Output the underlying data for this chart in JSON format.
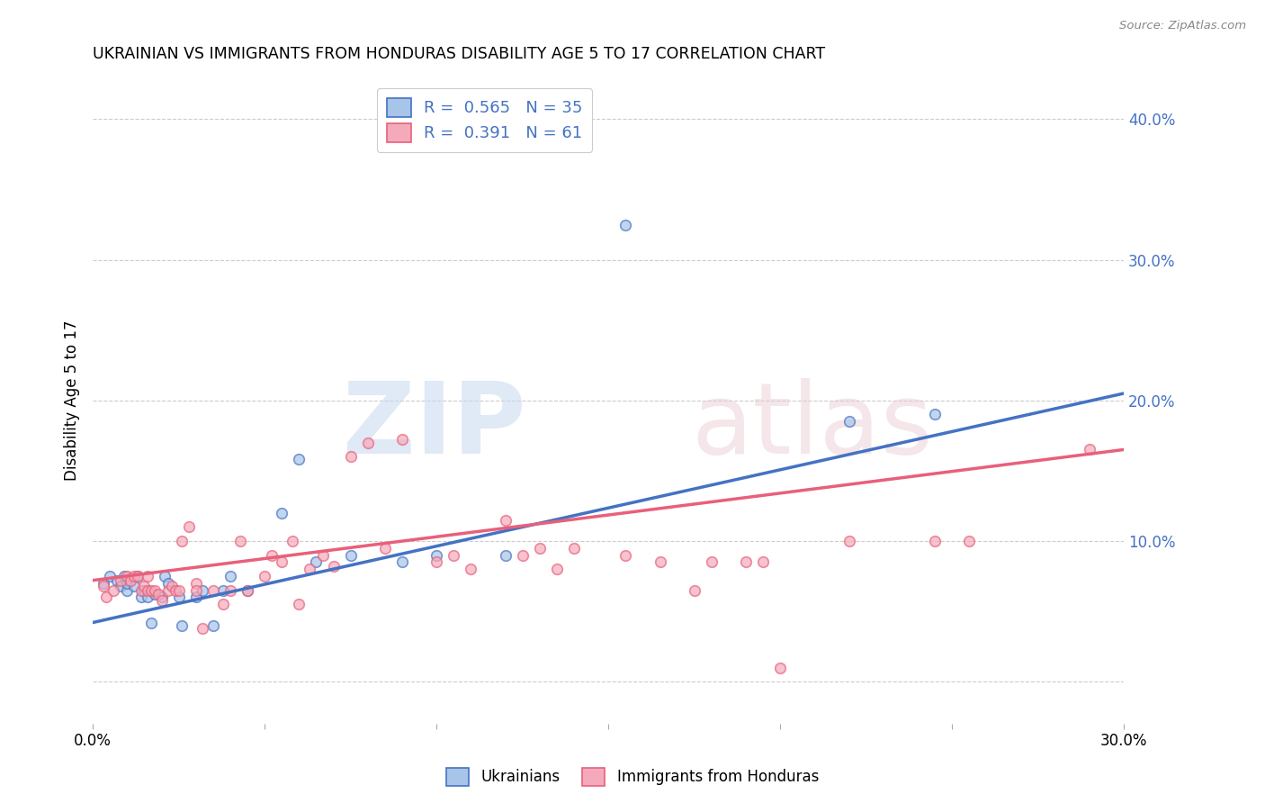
{
  "title": "UKRAINIAN VS IMMIGRANTS FROM HONDURAS DISABILITY AGE 5 TO 17 CORRELATION CHART",
  "source": "Source: ZipAtlas.com",
  "ylabel": "Disability Age 5 to 17",
  "xlim": [
    0.0,
    0.3
  ],
  "ylim": [
    -0.03,
    0.43
  ],
  "color_ukrainian": "#a8c4e8",
  "color_honduran": "#f4aabb",
  "color_line_ukrainian": "#4472c4",
  "color_line_honduran": "#e8607a",
  "color_axis_text": "#4472c4",
  "background_color": "#ffffff",
  "grid_color": "#cccccc",
  "ukrainians_x": [
    0.003,
    0.005,
    0.007,
    0.008,
    0.009,
    0.01,
    0.01,
    0.012,
    0.013,
    0.014,
    0.015,
    0.016,
    0.017,
    0.018,
    0.02,
    0.021,
    0.022,
    0.025,
    0.026,
    0.03,
    0.032,
    0.035,
    0.038,
    0.04,
    0.045,
    0.055,
    0.06,
    0.065,
    0.075,
    0.09,
    0.1,
    0.12,
    0.155,
    0.22,
    0.245
  ],
  "ukrainians_y": [
    0.07,
    0.075,
    0.072,
    0.068,
    0.075,
    0.065,
    0.07,
    0.068,
    0.075,
    0.06,
    0.065,
    0.06,
    0.042,
    0.062,
    0.06,
    0.075,
    0.07,
    0.06,
    0.04,
    0.06,
    0.065,
    0.04,
    0.065,
    0.075,
    0.065,
    0.12,
    0.158,
    0.085,
    0.09,
    0.085,
    0.09,
    0.09,
    0.325,
    0.185,
    0.19
  ],
  "hondurans_x": [
    0.003,
    0.004,
    0.006,
    0.008,
    0.01,
    0.011,
    0.012,
    0.013,
    0.014,
    0.015,
    0.016,
    0.016,
    0.017,
    0.018,
    0.019,
    0.02,
    0.022,
    0.023,
    0.024,
    0.025,
    0.026,
    0.028,
    0.03,
    0.03,
    0.032,
    0.035,
    0.038,
    0.04,
    0.043,
    0.045,
    0.05,
    0.052,
    0.055,
    0.058,
    0.06,
    0.063,
    0.067,
    0.07,
    0.075,
    0.08,
    0.085,
    0.09,
    0.1,
    0.105,
    0.11,
    0.12,
    0.125,
    0.13,
    0.135,
    0.14,
    0.155,
    0.165,
    0.175,
    0.18,
    0.19,
    0.195,
    0.2,
    0.22,
    0.245,
    0.255,
    0.29
  ],
  "hondurans_y": [
    0.068,
    0.06,
    0.065,
    0.072,
    0.075,
    0.072,
    0.075,
    0.075,
    0.065,
    0.068,
    0.065,
    0.075,
    0.065,
    0.065,
    0.062,
    0.058,
    0.065,
    0.068,
    0.065,
    0.065,
    0.1,
    0.11,
    0.07,
    0.065,
    0.038,
    0.065,
    0.055,
    0.065,
    0.1,
    0.065,
    0.075,
    0.09,
    0.085,
    0.1,
    0.055,
    0.08,
    0.09,
    0.082,
    0.16,
    0.17,
    0.095,
    0.172,
    0.085,
    0.09,
    0.08,
    0.115,
    0.09,
    0.095,
    0.08,
    0.095,
    0.09,
    0.085,
    0.065,
    0.085,
    0.085,
    0.085,
    0.01,
    0.1,
    0.1,
    0.1,
    0.165
  ],
  "line_u_x0": 0.0,
  "line_u_y0": 0.042,
  "line_u_x1": 0.3,
  "line_u_y1": 0.205,
  "line_h_x0": 0.0,
  "line_h_y0": 0.072,
  "line_h_x1": 0.3,
  "line_h_y1": 0.165,
  "legend_r1": "0.565",
  "legend_n1": "35",
  "legend_r2": "0.391",
  "legend_n2": "61",
  "dot_size": 70,
  "dot_alpha": 0.7,
  "dot_edge_width": 1.2
}
